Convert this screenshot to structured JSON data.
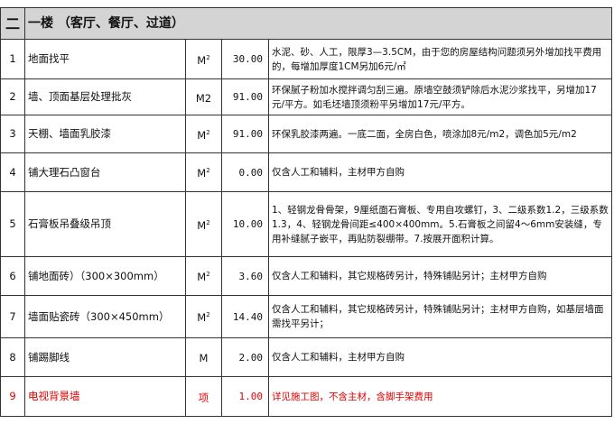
{
  "section": {
    "number": "二",
    "title": "一楼 （客厅、餐厅、过道）"
  },
  "colors": {
    "header_bg": "#d4d4d4",
    "highlight_text": "#e00000"
  },
  "rows": [
    {
      "no": "1",
      "name": "地面找平",
      "unit": "M",
      "unit_sup": "2",
      "qty": "30.00",
      "desc": "水泥、砂、人工，限厚3—3.5CM，由于您的房屋结构问题须另外增加找平费用的，每增加厚度1CM另加6元/㎡"
    },
    {
      "no": "2",
      "name": "墙、顶面基层处理批灰",
      "unit": "M2",
      "unit_sup": "",
      "qty": "91.00",
      "desc": "环保腻子粉加水搅拌调匀刮三遍。原墙空鼓须铲除后水泥沙浆找平，另增加17元/平方。如毛坯墙顶须粉平另增加17元/平方。"
    },
    {
      "no": "3",
      "name": "天棚、墙面乳胶漆",
      "unit": "M",
      "unit_sup": "2",
      "qty": "91.00",
      "desc": "环保乳胶漆两遍。一底二面，全房白色，喷涂加8元/m2，调色加5元/m2"
    },
    {
      "no": "4",
      "name": "铺大理石凸窗台",
      "unit": "M",
      "unit_sup": "2",
      "qty": "0.00",
      "desc": "仅含人工和辅料，主材甲方自购"
    },
    {
      "no": "5",
      "name": "石膏板吊叠级吊顶",
      "unit": "M",
      "unit_sup": "2",
      "qty": "10.00",
      "desc": "1、轻钢龙骨骨架，9厘纸面石膏板、专用自攻螺钉，3、二级系数1.2，三级系数1.3，4、轻钢龙骨间距≤400×400mm。5.石膏板之间留4～6mm安装缝，专用补缝腻子嵌平，再贴防裂绷带。7.按展开面积计算。"
    },
    {
      "no": "6",
      "name": "铺地面砖）（300×300mm）",
      "unit": "M",
      "unit_sup": "2",
      "qty": "3.60",
      "desc": "仅含人工和辅料，其它规格砖另计，特殊铺贴另计；主材甲方自购"
    },
    {
      "no": "7",
      "name": "墙面贴瓷砖（300×450mm）",
      "unit": "M",
      "unit_sup": "2",
      "qty": "14.40",
      "desc": "仅含人工和辅料，其它规格砖另计，特殊铺贴另计；主材甲方自购，如基层墙面需找平另计；"
    },
    {
      "no": "8",
      "name": "铺踢脚线",
      "unit": "M",
      "unit_sup": "",
      "qty": "2.00",
      "desc": "仅含人工和辅料，主材甲方自购"
    },
    {
      "no": "9",
      "name": "电视背景墙",
      "unit": "项",
      "unit_sup": "",
      "qty": "1.00",
      "desc": "详见施工图，不含主材，含脚手架费用",
      "highlight": true
    }
  ]
}
